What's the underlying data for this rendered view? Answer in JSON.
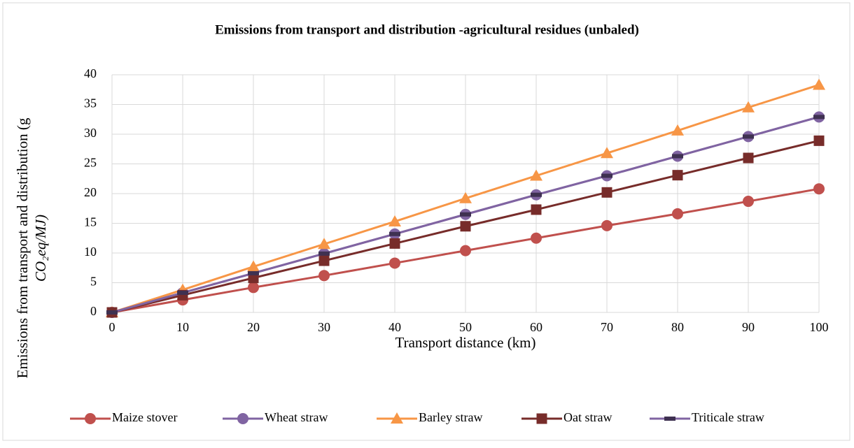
{
  "chart_data": {
    "type": "line",
    "title": "Emissions from transport and distribution -agricultural residues (unbaled)",
    "xlabel": "Transport distance (km)",
    "ylabel": [
      "Emissions from transport and distribution (g",
      "CO₂eq/MJ)"
    ],
    "x": [
      0,
      10,
      20,
      30,
      40,
      50,
      60,
      70,
      80,
      90,
      100
    ],
    "xlim": [
      0,
      100
    ],
    "xticks": [
      0,
      10,
      20,
      30,
      40,
      50,
      60,
      70,
      80,
      90,
      100
    ],
    "ylim": [
      0,
      40
    ],
    "yticks": [
      0,
      5,
      10,
      15,
      20,
      25,
      30,
      35,
      40
    ],
    "grid": true,
    "legend": "bottom",
    "series": [
      {
        "name": "Maize stover",
        "color": "#c0504d",
        "marker": "circle",
        "values": [
          0,
          2.1,
          4.2,
          6.2,
          8.3,
          10.4,
          12.5,
          14.6,
          16.6,
          18.7,
          20.8
        ]
      },
      {
        "name": "Wheat straw",
        "color": "#8064a2",
        "marker": "circle",
        "values": [
          0,
          3.3,
          6.6,
          9.9,
          13.2,
          16.5,
          19.8,
          23.0,
          26.3,
          29.6,
          32.9
        ]
      },
      {
        "name": "Barley straw",
        "color": "#f79646",
        "marker": "triangle",
        "values": [
          0,
          3.8,
          7.7,
          11.5,
          15.3,
          19.2,
          23.0,
          26.8,
          30.6,
          34.5,
          38.3
        ]
      },
      {
        "name": "Oat straw",
        "color": "#772c2a",
        "marker": "square",
        "values": [
          0,
          2.9,
          5.8,
          8.7,
          11.6,
          14.5,
          17.3,
          20.2,
          23.1,
          26.0,
          28.9
        ]
      },
      {
        "name": "Triticale straw",
        "color": "#8064a2",
        "marker": "dash",
        "values": [
          0,
          3.3,
          6.6,
          9.9,
          13.2,
          16.5,
          19.8,
          23.0,
          26.3,
          29.6,
          32.9
        ]
      }
    ]
  }
}
